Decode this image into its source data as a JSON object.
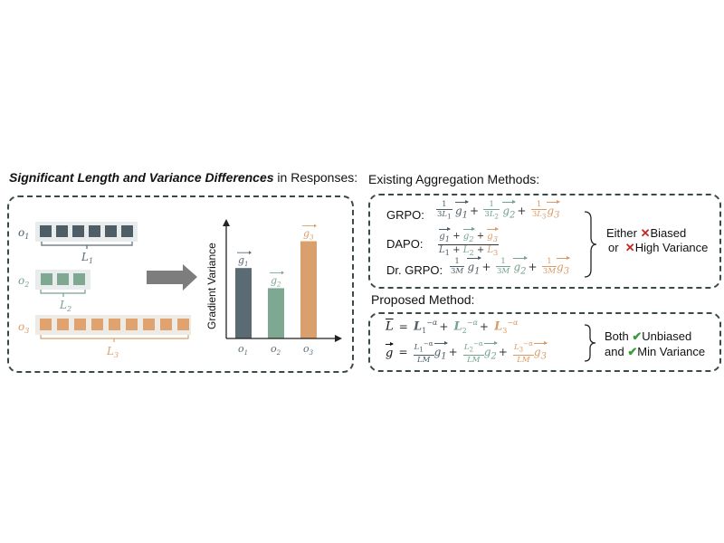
{
  "left": {
    "title_bold": "Significant Length and Variance Differences",
    "title_rest": " in Responses:",
    "responses": [
      {
        "label": "o",
        "sub": "1",
        "length_label": "L",
        "length_sub": "1",
        "tokens": 6
      },
      {
        "label": "o",
        "sub": "2",
        "length_label": "L",
        "length_sub": "2",
        "tokens": 3
      },
      {
        "label": "o",
        "sub": "3",
        "length_label": "L",
        "length_sub": "3",
        "tokens": 9
      }
    ]
  },
  "chart_data": {
    "type": "bar",
    "ylabel": "Gradient Variance",
    "categories": [
      "o1",
      "o2",
      "o3"
    ],
    "category_labels": [
      {
        "base": "o",
        "sub": "1"
      },
      {
        "base": "o",
        "sub": "2"
      },
      {
        "base": "o",
        "sub": "3"
      }
    ],
    "bar_labels": [
      {
        "base": "g",
        "sub": "1"
      },
      {
        "base": "g",
        "sub": "2"
      },
      {
        "base": "g",
        "sub": "3"
      }
    ],
    "values": [
      2.1,
      1.5,
      2.9
    ],
    "ylim": [
      0,
      3.4
    ],
    "colors": [
      "#5a6b73",
      "#7fa892",
      "#d9a06d"
    ]
  },
  "existing": {
    "title": "Existing Aggregation Methods:",
    "methods": [
      {
        "name": "GRPO:"
      },
      {
        "name": "DAPO:"
      },
      {
        "name": "Dr. GRPO:"
      }
    ],
    "verdict": {
      "word1": "Either",
      "item1": "Biased",
      "word2": "or",
      "item2": "High Variance"
    }
  },
  "proposed": {
    "title": "Proposed Method:",
    "verdict": {
      "word1": "Both",
      "item1": "Unbiased",
      "word2": "and",
      "item2": "Min Variance"
    }
  },
  "colors": {
    "slate": "#5a6b73",
    "green": "#7fa892",
    "orange": "#d9a06d",
    "check": "#3a9b3a",
    "cross": "#c62828"
  },
  "icons": [
    "right-arrow-icon",
    "cross-icon",
    "check-icon"
  ]
}
